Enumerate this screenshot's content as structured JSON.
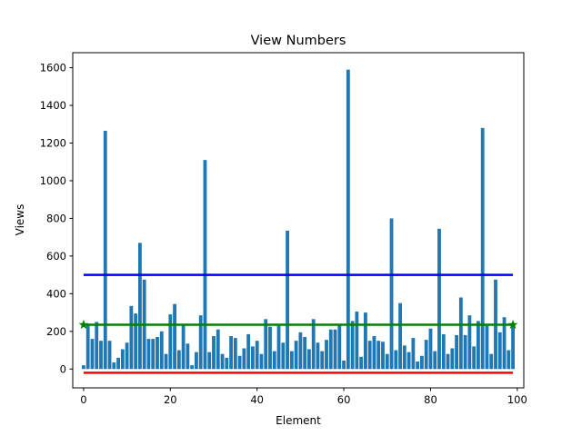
{
  "chart_data": {
    "type": "bar",
    "title": "View Numbers",
    "xlabel": "Element",
    "ylabel": "Views",
    "xlim": [
      -2.5,
      101.5
    ],
    "ylim": [
      -100,
      1680
    ],
    "x_ticks": [
      0,
      20,
      40,
      60,
      80,
      100
    ],
    "y_ticks": [
      0,
      200,
      400,
      600,
      800,
      1000,
      1200,
      1400,
      1600
    ],
    "x_tick_labels": [
      "0",
      "20",
      "40",
      "60",
      "80",
      "100"
    ],
    "y_tick_labels": [
      "0",
      "200",
      "400",
      "600",
      "800",
      "1000",
      "1200",
      "1400",
      "1600"
    ],
    "grid": false,
    "legend": null,
    "bar_color": "#1f77b4",
    "series": [
      {
        "name": "views",
        "x": [
          0,
          1,
          2,
          3,
          4,
          5,
          6,
          7,
          8,
          9,
          10,
          11,
          12,
          13,
          14,
          15,
          16,
          17,
          18,
          19,
          20,
          21,
          22,
          23,
          24,
          25,
          26,
          27,
          28,
          29,
          30,
          31,
          32,
          33,
          34,
          35,
          36,
          37,
          38,
          39,
          40,
          41,
          42,
          43,
          44,
          45,
          46,
          47,
          48,
          49,
          50,
          51,
          52,
          53,
          54,
          55,
          56,
          57,
          58,
          59,
          60,
          61,
          62,
          63,
          64,
          65,
          66,
          67,
          68,
          69,
          70,
          71,
          72,
          73,
          74,
          75,
          76,
          77,
          78,
          79,
          80,
          81,
          82,
          83,
          84,
          85,
          86,
          87,
          88,
          89,
          90,
          91,
          92,
          93,
          94,
          95,
          96,
          97,
          98,
          99
        ],
        "values": [
          20,
          240,
          160,
          250,
          150,
          1265,
          150,
          35,
          60,
          105,
          140,
          335,
          295,
          670,
          475,
          160,
          160,
          170,
          200,
          80,
          290,
          345,
          100,
          240,
          135,
          20,
          90,
          285,
          1110,
          90,
          175,
          210,
          80,
          60,
          175,
          165,
          70,
          110,
          185,
          120,
          150,
          80,
          265,
          225,
          95,
          230,
          140,
          735,
          95,
          150,
          195,
          170,
          105,
          265,
          140,
          95,
          155,
          210,
          210,
          240,
          45,
          1590,
          255,
          305,
          65,
          300,
          150,
          175,
          150,
          145,
          80,
          800,
          100,
          350,
          125,
          90,
          165,
          40,
          70,
          155,
          215,
          95,
          745,
          185,
          80,
          110,
          180,
          380,
          180,
          285,
          120,
          255,
          1280,
          230,
          80,
          475,
          195,
          275,
          100,
          240
        ]
      }
    ],
    "reference_lines": [
      {
        "name": "blue-line",
        "y": 500,
        "x_range": [
          0,
          99
        ],
        "color": "#0000ff",
        "marker": null
      },
      {
        "name": "green-line",
        "y": 235,
        "x_range": [
          0,
          99
        ],
        "color": "#008000",
        "marker": "star"
      },
      {
        "name": "red-line",
        "y": -20,
        "x_range": [
          0,
          99
        ],
        "color": "#ff0000",
        "marker": null
      }
    ]
  }
}
